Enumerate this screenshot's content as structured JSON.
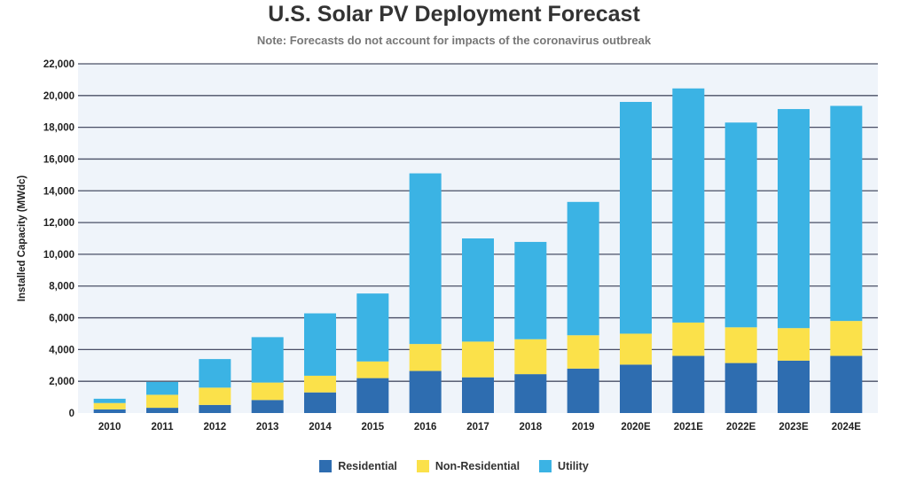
{
  "chart_data": {
    "type": "bar",
    "stacked": true,
    "title": "U.S. Solar PV Deployment Forecast",
    "subtitle": "Note: Forecasts do not account for impacts of the coronavirus outbreak",
    "xlabel": "",
    "ylabel": "Installed Capacity (MWdc)",
    "ylim": [
      0,
      22000
    ],
    "yticks": [
      "0",
      "2,000",
      "4,000",
      "6,000",
      "8,000",
      "10,000",
      "12,000",
      "14,000",
      "16,000",
      "18,000",
      "20,000",
      "22,000"
    ],
    "grid": true,
    "legend_position": "bottom",
    "categories": [
      "2010",
      "2011",
      "2012",
      "2013",
      "2014",
      "2015",
      "2016",
      "2017",
      "2018",
      "2019",
      "2020E",
      "2021E",
      "2022E",
      "2023E",
      "2024E"
    ],
    "series": [
      {
        "name": "Residential",
        "color": "#2e6db0",
        "values": [
          230,
          330,
          510,
          820,
          1300,
          2200,
          2650,
          2250,
          2450,
          2800,
          3050,
          3600,
          3150,
          3300,
          3600
        ]
      },
      {
        "name": "Non-Residential",
        "color": "#fbe14a",
        "values": [
          400,
          820,
          1090,
          1100,
          1050,
          1050,
          1700,
          2250,
          2200,
          2100,
          1950,
          2100,
          2250,
          2050,
          2200
        ]
      },
      {
        "name": "Utility",
        "color": "#3bb3e4",
        "values": [
          270,
          810,
          1800,
          2860,
          3930,
          4280,
          10750,
          6500,
          6130,
          8400,
          14600,
          14750,
          12900,
          13800,
          13550
        ]
      }
    ]
  }
}
